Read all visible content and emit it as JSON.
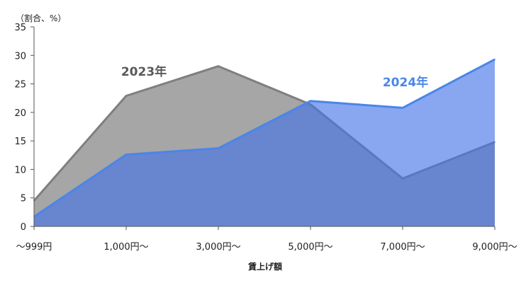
{
  "chart_data": {
    "type": "area",
    "unit_label": "（割合、%）",
    "xlabel": "賃上げ額",
    "ylabel": "",
    "ylim": [
      0,
      35
    ],
    "yticks": [
      0,
      5,
      10,
      15,
      20,
      25,
      30,
      35
    ],
    "categories": [
      "～999円",
      "1,000円～",
      "3,000円～",
      "5,000円～",
      "7,000円～",
      "9,000円～"
    ],
    "series": [
      {
        "name": "2023年",
        "values": [
          4.5,
          22.9,
          28.1,
          21.4,
          8.4,
          14.8
        ],
        "color": "#a6a6a6",
        "line_color": "#7f7f7f",
        "label_color": "#595959"
      },
      {
        "name": "2024年",
        "values": [
          1.7,
          12.6,
          13.7,
          22.0,
          20.8,
          29.3
        ],
        "color": "#4472e8",
        "line_color": "#4a86e8",
        "label_color": "#4a86e8"
      }
    ],
    "grid": false,
    "legend": "none"
  }
}
